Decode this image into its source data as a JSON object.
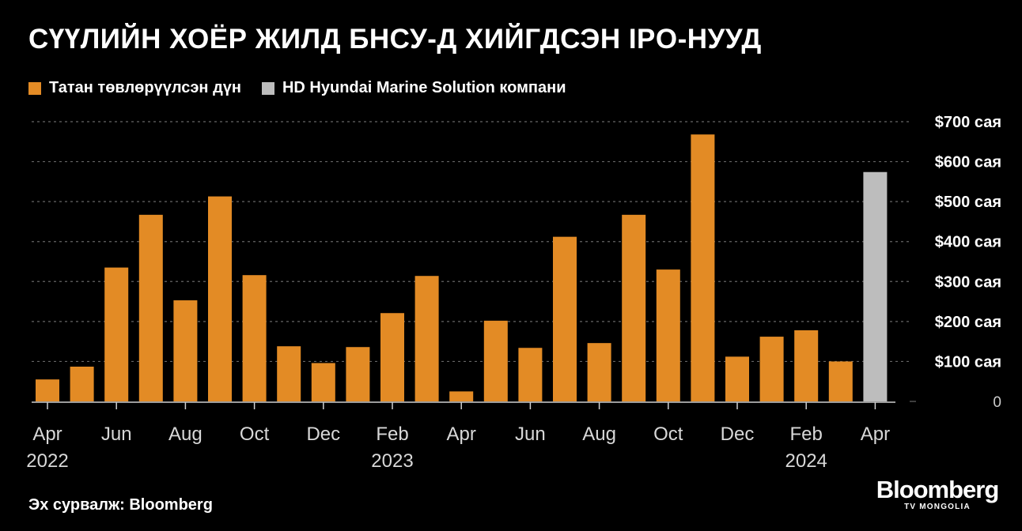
{
  "source": "Эх сурвалж: Bloomberg",
  "logo": {
    "main": "Bloomberg",
    "sub": "TV MONGOLIA"
  },
  "colors": {
    "primary": "#e38b25",
    "highlight": "#bdbdbd",
    "grid": "#666666",
    "axis": "#d0d0d0"
  },
  "chart_data": {
    "type": "bar",
    "title": "СҮҮЛИЙН ХОЁР ЖИЛД БНСУ-Д ХИЙГДСЭН IPO-НУУД",
    "legend": [
      {
        "name": "Татан төвлөрүүлсэн дүн",
        "color": "#e38b25"
      },
      {
        "name": "HD Hyundai Marine Solution компани",
        "color": "#bdbdbd"
      }
    ],
    "legend_position": "top-left",
    "grid": true,
    "y_axis_position": "right",
    "ylim": [
      0,
      700
    ],
    "yticks": [
      {
        "value": 0,
        "label": "0"
      },
      {
        "value": 100,
        "label": "$100 сая"
      },
      {
        "value": 200,
        "label": "$200 сая"
      },
      {
        "value": 300,
        "label": "$300 сая"
      },
      {
        "value": 400,
        "label": "$400 сая"
      },
      {
        "value": 500,
        "label": "$500 сая"
      },
      {
        "value": 600,
        "label": "$600 сая"
      },
      {
        "value": 700,
        "label": "$700 сая"
      }
    ],
    "xticks": [
      {
        "month": "2022-04",
        "label": "Apr",
        "year": "2022"
      },
      {
        "month": "2022-06",
        "label": "Jun",
        "year": ""
      },
      {
        "month": "2022-08",
        "label": "Aug",
        "year": ""
      },
      {
        "month": "2022-10",
        "label": "Oct",
        "year": ""
      },
      {
        "month": "2022-12",
        "label": "Dec",
        "year": ""
      },
      {
        "month": "2023-02",
        "label": "Feb",
        "year": "2023"
      },
      {
        "month": "2023-04",
        "label": "Apr",
        "year": ""
      },
      {
        "month": "2023-06",
        "label": "Jun",
        "year": ""
      },
      {
        "month": "2023-08",
        "label": "Aug",
        "year": ""
      },
      {
        "month": "2023-10",
        "label": "Oct",
        "year": ""
      },
      {
        "month": "2023-12",
        "label": "Dec",
        "year": ""
      },
      {
        "month": "2024-02",
        "label": "Feb",
        "year": "2024"
      },
      {
        "month": "2024-04",
        "label": "Apr",
        "year": ""
      }
    ],
    "bars": [
      {
        "month": "2022-04",
        "value": 55,
        "series": 0
      },
      {
        "month": "2022-05",
        "value": 87,
        "series": 0
      },
      {
        "month": "2022-06",
        "value": 335,
        "series": 0
      },
      {
        "month": "2022-07",
        "value": 467,
        "series": 0
      },
      {
        "month": "2022-08",
        "value": 253,
        "series": 0
      },
      {
        "month": "2022-09",
        "value": 513,
        "series": 0
      },
      {
        "month": "2022-10",
        "value": 316,
        "series": 0
      },
      {
        "month": "2022-11",
        "value": 138,
        "series": 0
      },
      {
        "month": "2022-12",
        "value": 96,
        "series": 0
      },
      {
        "month": "2023-01",
        "value": 136,
        "series": 0
      },
      {
        "month": "2023-02",
        "value": 221,
        "series": 0
      },
      {
        "month": "2023-03",
        "value": 314,
        "series": 0
      },
      {
        "month": "2023-04",
        "value": 25,
        "series": 0
      },
      {
        "month": "2023-05",
        "value": 202,
        "series": 0
      },
      {
        "month": "2023-06",
        "value": 134,
        "series": 0
      },
      {
        "month": "2023-07",
        "value": 412,
        "series": 0
      },
      {
        "month": "2023-08",
        "value": 146,
        "series": 0
      },
      {
        "month": "2023-09",
        "value": 467,
        "series": 0
      },
      {
        "month": "2023-10",
        "value": 330,
        "series": 0
      },
      {
        "month": "2023-11",
        "value": 668,
        "series": 0
      },
      {
        "month": "2023-12",
        "value": 112,
        "series": 0
      },
      {
        "month": "2024-01",
        "value": 162,
        "series": 0
      },
      {
        "month": "2024-02",
        "value": 178,
        "series": 0
      },
      {
        "month": "2024-03",
        "value": 100,
        "series": 0
      },
      {
        "month": "2024-04",
        "value": 574,
        "series": 1
      }
    ]
  }
}
